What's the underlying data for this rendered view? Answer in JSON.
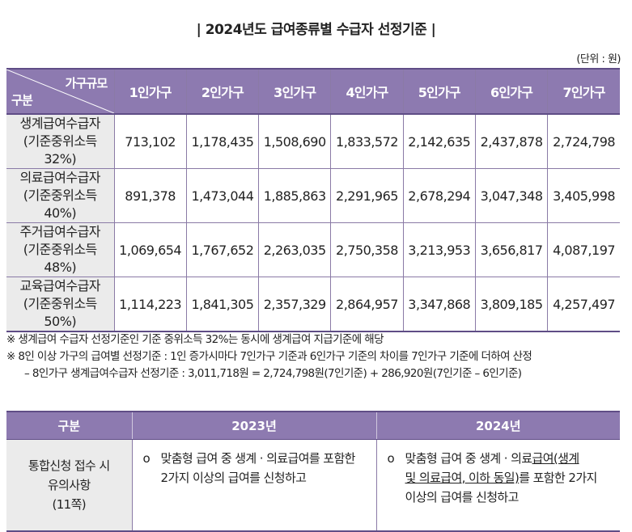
{
  "title": "| 2024년도 급여종류별 수급자 선정기준 |",
  "unit": "(단위 : 원)",
  "table1": {
    "corner_top": "가구규모",
    "corner_bottom": "구분",
    "columns": [
      "1인가구",
      "2인가구",
      "3인가구",
      "4인가구",
      "5인가구",
      "6인가구",
      "7인가구"
    ],
    "rows": [
      {
        "name": "생계급여수급자",
        "sub": "(기준중위소득 32%)",
        "values": [
          "713,102",
          "1,178,435",
          "1,508,690",
          "1,833,572",
          "2,142,635",
          "2,437,878",
          "2,724,798"
        ]
      },
      {
        "name": "의료급여수급자",
        "sub": "(기준중위소득 40%)",
        "values": [
          "891,378",
          "1,473,044",
          "1,885,863",
          "2,291,965",
          "2,678,294",
          "3,047,348",
          "3,405,998"
        ]
      },
      {
        "name": "주거급여수급자",
        "sub": "(기준중위소득 48%)",
        "values": [
          "1,069,654",
          "1,767,652",
          "2,263,035",
          "2,750,358",
          "3,213,953",
          "3,656,817",
          "4,087,197"
        ]
      },
      {
        "name": "교육급여수급자",
        "sub": "(기준중위소득 50%)",
        "values": [
          "1,114,223",
          "1,841,305",
          "2,357,329",
          "2,864,957",
          "3,347,868",
          "3,809,185",
          "4,257,497"
        ]
      }
    ]
  },
  "notes": [
    "※ 생계급여 수급자 선정기준인 기준 중위소득 32%는 동시에 생계급여 지급기준에 해당",
    "※ 8인 이상 가구의 급여별 선정기준 : 1인 증가시마다 7인가구 기준과 6인가구 기준의 차이를 7인가구 기준에 더하여 산정",
    "– 8인가구 생계급여수급자 선정기준 : 3,011,718원 = 2,724,798원(7인기준) + 286,920원(7인기준 – 6인기준)"
  ],
  "table2": {
    "headers": [
      "구분",
      "2023년",
      "2024년"
    ],
    "row_label": [
      "통합신청 접수 시",
      "유의사항",
      "(11쪽)"
    ],
    "col2023": {
      "marker": "ο",
      "lines": [
        "맞춤형 급여 중 생계 · 의료급여를 포함한",
        "2가지 이상의 급여를 신청하고"
      ]
    },
    "col2024": {
      "marker": "ο",
      "line1_plain": "맞춤형 급여 중 생계 · 의료",
      "line1_underlined": "급여(생계",
      "line2_underlined": "및 의료급여, 이하 동일)",
      "line2_plain": "를 포함한 2가지",
      "line3": "이상의 급여를 신청하고"
    }
  }
}
